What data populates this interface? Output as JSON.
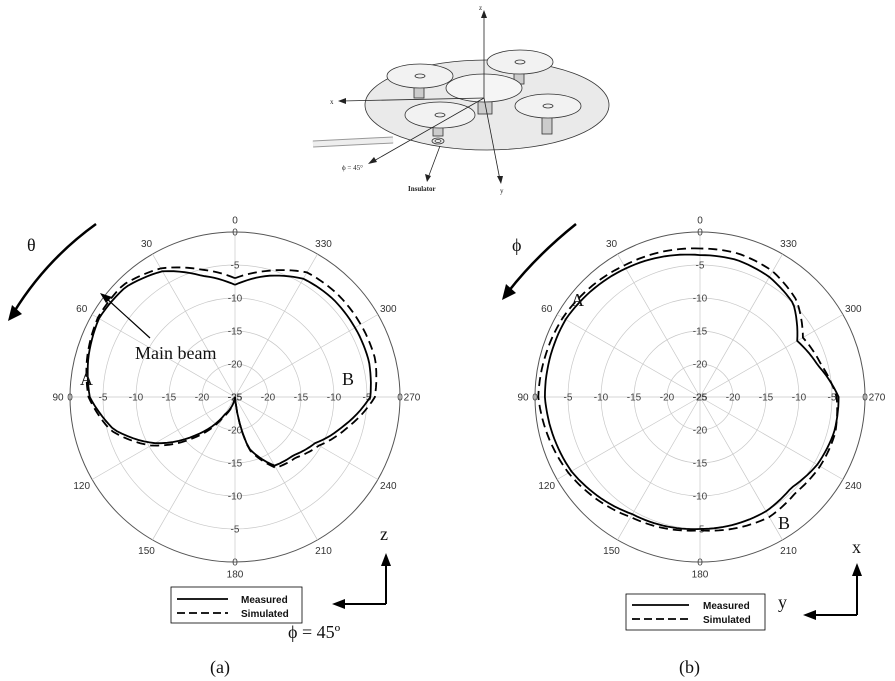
{
  "diagram": {
    "axis_z": "z",
    "axis_x": "x",
    "axis_y": "y",
    "phi_label": "ϕ = 45°",
    "insulator_label": "Insulator"
  },
  "chart_data": [
    {
      "type": "polar-line",
      "panel_label": "(a)",
      "sweep_symbol": "θ",
      "angle_ticks": [
        "0",
        "30",
        "60",
        "90",
        "120",
        "150",
        "180",
        "210",
        "240",
        "270",
        "300",
        "330"
      ],
      "radial_ticks": [
        "0",
        "-5",
        "-10",
        "-15",
        "-20",
        "-25"
      ],
      "rlim": [
        -25,
        0
      ],
      "grid": true,
      "legend": [
        "Measured",
        "Simulated"
      ],
      "legend_position": "bottom-center",
      "annotations": {
        "main_beam": "Main beam",
        "point_a": "A",
        "point_b": "B"
      },
      "axes_glyph": {
        "vertical": "z",
        "horizontal": "ϕ = 45º"
      },
      "series": [
        {
          "name": "Measured",
          "style": "solid",
          "angle_deg": [
            0,
            15,
            30,
            45,
            60,
            75,
            90,
            105,
            120,
            135,
            150,
            165,
            175,
            180,
            185,
            195,
            210,
            225,
            240,
            255,
            270,
            285,
            300,
            315,
            330,
            345,
            360
          ],
          "gain_db": [
            -8,
            -6,
            -3,
            -1.5,
            -1.2,
            -2,
            -3,
            -6,
            -11,
            -17,
            -22,
            -24,
            -25,
            -25,
            -25,
            -17,
            -13,
            -12.5,
            -11,
            -8,
            -4.5,
            -4,
            -4,
            -4,
            -4.3,
            -6,
            -8
          ]
        },
        {
          "name": "Simulated",
          "style": "dashed",
          "angle_deg": [
            0,
            15,
            30,
            45,
            60,
            75,
            90,
            105,
            120,
            135,
            150,
            165,
            175,
            180,
            185,
            195,
            210,
            225,
            240,
            255,
            270,
            285,
            300,
            315,
            330,
            345,
            360
          ],
          "gain_db": [
            -7,
            -5,
            -2.5,
            -1,
            -1,
            -1.8,
            -2.8,
            -5.5,
            -10.3,
            -16.3,
            -21.5,
            -24,
            -25,
            -25,
            -25,
            -16.8,
            -12.6,
            -12,
            -10.3,
            -7.3,
            -3.8,
            -3,
            -3,
            -3,
            -3.2,
            -5.2,
            -7
          ]
        }
      ]
    },
    {
      "type": "polar-line",
      "panel_label": "(b)",
      "sweep_symbol": "ϕ",
      "angle_ticks": [
        "0",
        "30",
        "60",
        "90",
        "120",
        "150",
        "180",
        "210",
        "240",
        "270",
        "300",
        "330"
      ],
      "radial_ticks": [
        "0",
        "-5",
        "-10",
        "-15",
        "-20",
        "-25"
      ],
      "rlim": [
        -25,
        0
      ],
      "grid": true,
      "legend": [
        "Measured",
        "Simulated"
      ],
      "legend_position": "bottom-center",
      "annotations": {
        "point_a": "A",
        "point_b": "B"
      },
      "axes_glyph": {
        "vertical": "x",
        "horizontal": "y"
      },
      "series": [
        {
          "name": "Measured",
          "style": "solid",
          "angle_deg": [
            0,
            30,
            60,
            90,
            120,
            150,
            180,
            210,
            225,
            240,
            255,
            270,
            285,
            300,
            315,
            330,
            345,
            360
          ],
          "gain_db": [
            -3.5,
            -2.5,
            -1.5,
            -1.5,
            -2.5,
            -4.5,
            -5,
            -5,
            -5.5,
            -4.5,
            -4,
            -4,
            -6.5,
            -8,
            -5,
            -4,
            -3.5,
            -3.5
          ]
        },
        {
          "name": "Simulated",
          "style": "dashed",
          "angle_deg": [
            0,
            30,
            60,
            90,
            120,
            150,
            180,
            210,
            225,
            240,
            255,
            270,
            285,
            300,
            315,
            330,
            345,
            360
          ],
          "gain_db": [
            -2.5,
            -2,
            -1,
            -0.5,
            -2,
            -4,
            -4.8,
            -4,
            -4.5,
            -4,
            -3.8,
            -4.3,
            -6,
            -7,
            -4.3,
            -3,
            -2.5,
            -2.5
          ]
        }
      ]
    }
  ]
}
